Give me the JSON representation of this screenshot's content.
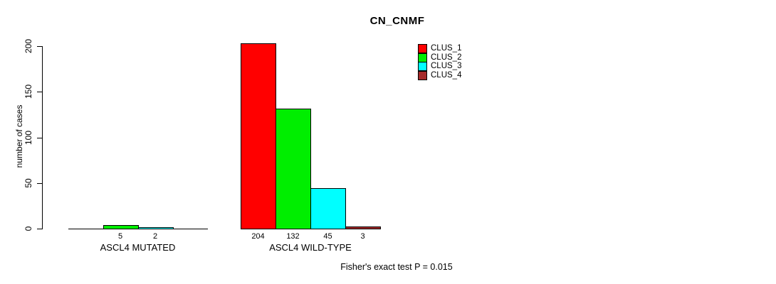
{
  "title": "CN_CNMF",
  "annotation": "Fisher's exact test P = 0.015",
  "chart_data": {
    "type": "bar",
    "title": "CN_CNMF",
    "xlabel": "",
    "ylabel": "number of cases",
    "ylim": [
      0,
      200
    ],
    "yticks": [
      0,
      50,
      100,
      150,
      200
    ],
    "grid": false,
    "legend_position": "top-right",
    "legend_frame": false,
    "categories": [
      "ASCL4 MUTATED",
      "ASCL4 WILD-TYPE"
    ],
    "series": [
      {
        "name": "CLUS_1",
        "color": "#FF0000",
        "values": [
          0,
          204
        ]
      },
      {
        "name": "CLUS_2",
        "color": "#00EE00",
        "values": [
          5,
          132
        ]
      },
      {
        "name": "CLUS_3",
        "color": "#00FFFF",
        "values": [
          2,
          45
        ]
      },
      {
        "name": "CLUS_4",
        "color": "#A52A2A",
        "values": [
          0,
          3
        ]
      }
    ],
    "bar_value_labels": {
      "ASCL4 MUTATED": [
        null,
        5,
        2,
        null
      ],
      "ASCL4 WILD-TYPE": [
        204,
        132,
        45,
        3
      ]
    },
    "annotation": "Fisher's exact test P = 0.015"
  }
}
